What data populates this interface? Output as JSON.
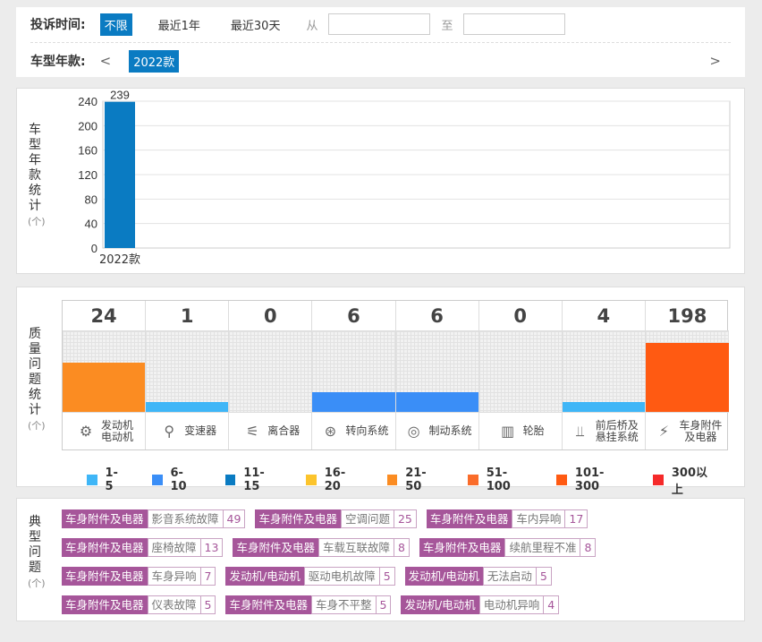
{
  "filter": {
    "time_label": "投诉时间:",
    "time_options": [
      "不限",
      "最近1年",
      "最近30天"
    ],
    "from_label": "从",
    "to_label": "至",
    "model_label": "车型年款:",
    "prev": "<",
    "next": ">",
    "year_selected": "2022款"
  },
  "year_chart": {
    "side_label": [
      "车",
      "型",
      "年",
      "款",
      "统",
      "计"
    ],
    "unit": "(个)",
    "chart_data": {
      "type": "bar",
      "categories": [
        "2022款"
      ],
      "values": [
        239
      ],
      "ylim": [
        0,
        240
      ],
      "yticks": [
        0,
        40,
        80,
        120,
        160,
        200,
        240
      ],
      "color": "#0a7bc2",
      "grid": true
    }
  },
  "quality": {
    "side_label": [
      "质",
      "量",
      "问",
      "题",
      "统",
      "计"
    ],
    "unit": "(个)",
    "chart_data": {
      "type": "bar",
      "categories": [
        {
          "name": "发动机\n电动机",
          "icon": "engine-icon",
          "glyph": "⚙"
        },
        {
          "name": "变速器",
          "icon": "gear-shift-icon",
          "glyph": "⚲"
        },
        {
          "name": "离合器",
          "icon": "clutch-pedal-icon",
          "glyph": "⚟"
        },
        {
          "name": "转向系统",
          "icon": "steering-wheel-icon",
          "glyph": "⊛"
        },
        {
          "name": "制动系统",
          "icon": "brake-disc-icon",
          "glyph": "◎"
        },
        {
          "name": "轮胎",
          "icon": "tire-icon",
          "glyph": "▥"
        },
        {
          "name": "前后桥及\n悬挂系统",
          "icon": "suspension-icon",
          "glyph": "⫫"
        },
        {
          "name": "车身附件\n及电器",
          "icon": "battery-icon",
          "glyph": "⚡"
        }
      ],
      "values": [
        24,
        1,
        0,
        6,
        6,
        0,
        4,
        198
      ],
      "bar_level": [
        0.61,
        0.12,
        0,
        0.24,
        0.24,
        0,
        0.12,
        0.86
      ],
      "bar_colors": [
        "#fb8c22",
        "#3fb6f7",
        "",
        "#3a8ef7",
        "#3a8ef7",
        "",
        "#3fb6f7",
        "#ff5a12"
      ]
    },
    "legend": [
      {
        "label": "1-5",
        "color": "#3fb6f7"
      },
      {
        "label": "6-10",
        "color": "#3a8ef7"
      },
      {
        "label": "11-15",
        "color": "#0a7bc2"
      },
      {
        "label": "16-20",
        "color": "#fcc42c"
      },
      {
        "label": "21-50",
        "color": "#fb8c22"
      },
      {
        "label": "51-100",
        "color": "#fa6c2a"
      },
      {
        "label": "101-300",
        "color": "#ff5a12"
      },
      {
        "label": "300以上",
        "color": "#f52a2a"
      }
    ]
  },
  "typical": {
    "side_label": [
      "典",
      "型",
      "问",
      "题"
    ],
    "unit": "(个)",
    "rows": [
      [
        {
          "category": "车身附件及电器",
          "problem": "影音系统故障",
          "count": "49"
        },
        {
          "category": "车身附件及电器",
          "problem": "空调问题",
          "count": "25"
        },
        {
          "category": "车身附件及电器",
          "problem": "车内异响",
          "count": "17"
        }
      ],
      [
        {
          "category": "车身附件及电器",
          "problem": "座椅故障",
          "count": "13"
        },
        {
          "category": "车身附件及电器",
          "problem": "车载互联故障",
          "count": "8"
        },
        {
          "category": "车身附件及电器",
          "problem": "续航里程不准",
          "count": "8"
        }
      ],
      [
        {
          "category": "车身附件及电器",
          "problem": "车身异响",
          "count": "7"
        },
        {
          "category": "发动机/电动机",
          "problem": "驱动电机故障",
          "count": "5"
        },
        {
          "category": "发动机/电动机",
          "problem": "无法启动",
          "count": "5"
        }
      ],
      [
        {
          "category": "车身附件及电器",
          "problem": "仪表故障",
          "count": "5"
        },
        {
          "category": "车身附件及电器",
          "problem": "车身不平整",
          "count": "5"
        },
        {
          "category": "发动机/电动机",
          "problem": "电动机异响",
          "count": "4"
        }
      ]
    ]
  }
}
